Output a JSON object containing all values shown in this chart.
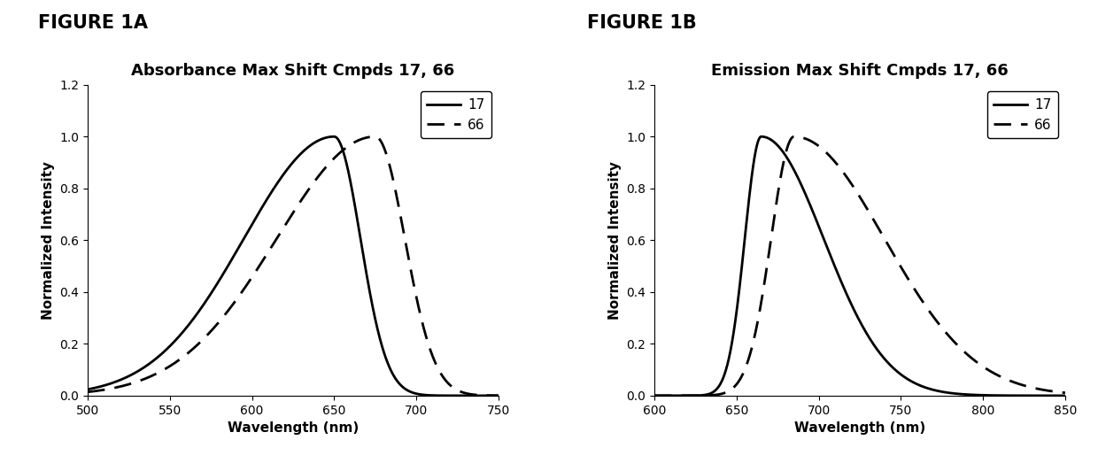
{
  "fig1a": {
    "title": "Absorbance Max Shift Cmpds 17, 66",
    "xlabel": "Wavelength (nm)",
    "ylabel": "Normalized Intensity",
    "xlim": [
      500,
      750
    ],
    "ylim": [
      0,
      1.2
    ],
    "xticks": [
      500,
      550,
      600,
      650,
      700,
      750
    ],
    "yticks": [
      0,
      0.2,
      0.4,
      0.6,
      0.8,
      1.0,
      1.2
    ],
    "figure_label": "FIGURE 1A",
    "c17_peak": 650,
    "c17_wl": 55,
    "c17_wr": 16,
    "c66_peak": 675,
    "c66_wl": 60,
    "c66_wr": 18
  },
  "fig1b": {
    "title": "Emission Max Shift Cmpds 17, 66",
    "xlabel": "Wavelength (nm)",
    "ylabel": "Normalized Intensity",
    "xlim": [
      600,
      850
    ],
    "ylim": [
      0,
      1.2
    ],
    "xticks": [
      600,
      650,
      700,
      750,
      800,
      850
    ],
    "yticks": [
      0,
      0.2,
      0.4,
      0.6,
      0.8,
      1.0,
      1.2
    ],
    "figure_label": "FIGURE 1B",
    "c17_peak": 665,
    "c17_wl": 10,
    "c17_wr": 38,
    "c66_peak": 685,
    "c66_wl": 14,
    "c66_wr": 55
  },
  "line_color": "#000000",
  "line_width": 2.0,
  "legend_17": "17",
  "legend_66": "66",
  "title_fontsize": 13,
  "label_fontsize": 11,
  "tick_fontsize": 10,
  "legend_fontsize": 11,
  "figure_label_fontsize": 15,
  "background_color": "#ffffff"
}
